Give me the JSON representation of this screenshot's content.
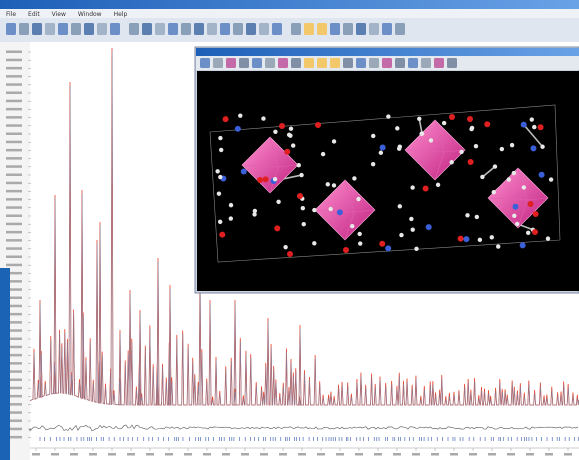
{
  "menu": {
    "items": [
      "File",
      "Edit",
      "View",
      "Window",
      "Help"
    ]
  }
}
